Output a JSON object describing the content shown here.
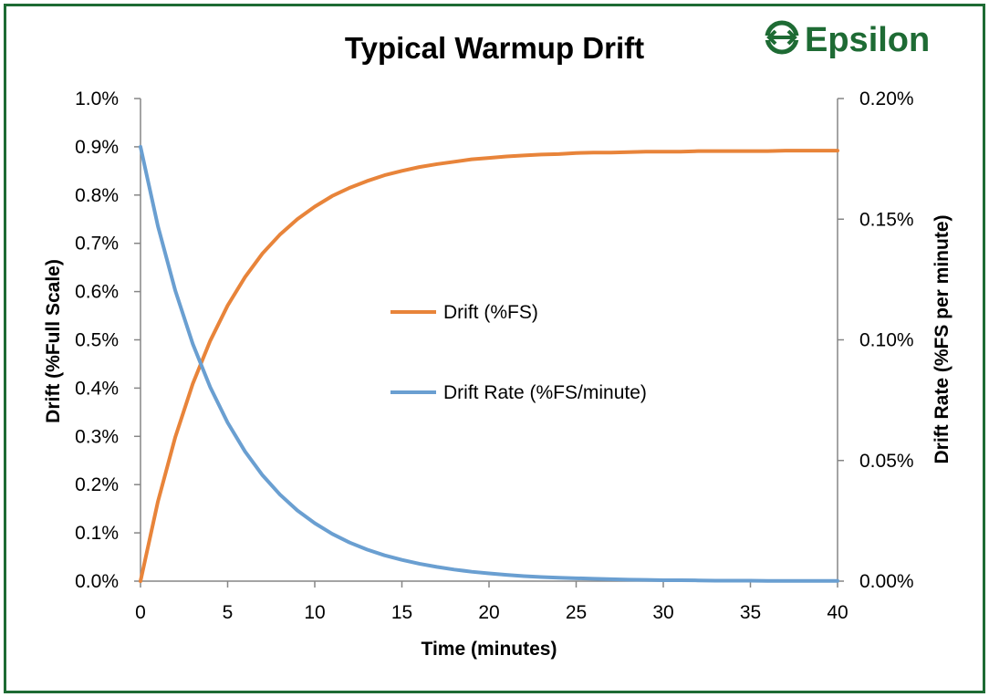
{
  "logo": {
    "text": "Epsilon",
    "color": "#1e6b34"
  },
  "chart_data": {
    "type": "line",
    "title": "Typical Warmup Drift",
    "xlabel": "Time (minutes)",
    "ylabel": "Drift (%Full Scale)",
    "y2label": "Drift Rate (%FS per minute)",
    "xlim": [
      0,
      40
    ],
    "ylim": [
      0,
      1.0
    ],
    "y2lim": [
      0,
      0.2
    ],
    "x_ticks": [
      "0",
      "5",
      "10",
      "15",
      "20",
      "25",
      "30",
      "35",
      "40"
    ],
    "y_ticks": [
      "0.0%",
      "0.1%",
      "0.2%",
      "0.3%",
      "0.4%",
      "0.5%",
      "0.6%",
      "0.7%",
      "0.8%",
      "0.9%",
      "1.0%"
    ],
    "y2_ticks": [
      "0.00%",
      "0.05%",
      "0.10%",
      "0.15%",
      "0.20%"
    ],
    "grid": false,
    "legend_position": "center",
    "x": [
      0,
      1,
      2,
      3,
      4,
      5,
      6,
      7,
      8,
      9,
      10,
      11,
      12,
      13,
      14,
      15,
      16,
      17,
      18,
      19,
      20,
      21,
      22,
      23,
      24,
      25,
      26,
      27,
      28,
      29,
      30,
      31,
      32,
      33,
      34,
      35,
      36,
      37,
      38,
      39,
      40
    ],
    "series": [
      {
        "name": "Drift (%FS)",
        "axis": "left",
        "color": "#e8843a",
        "values": [
          0.0,
          0.165,
          0.299,
          0.409,
          0.498,
          0.571,
          0.63,
          0.679,
          0.718,
          0.75,
          0.776,
          0.798,
          0.815,
          0.829,
          0.841,
          0.85,
          0.858,
          0.864,
          0.869,
          0.874,
          0.877,
          0.88,
          0.882,
          0.884,
          0.885,
          0.887,
          0.888,
          0.888,
          0.889,
          0.89,
          0.89,
          0.89,
          0.891,
          0.891,
          0.891,
          0.891,
          0.891,
          0.892,
          0.892,
          0.892,
          0.892
        ]
      },
      {
        "name": "Drift Rate (%FS/minute)",
        "axis": "right",
        "color": "#6a9fd1",
        "values": [
          0.18,
          0.1471,
          0.1203,
          0.0983,
          0.0804,
          0.0657,
          0.0537,
          0.0439,
          0.0359,
          0.0293,
          0.024,
          0.0196,
          0.016,
          0.0131,
          0.0107,
          0.0088,
          0.0072,
          0.0059,
          0.0048,
          0.0039,
          0.0032,
          0.0026,
          0.0021,
          0.0017,
          0.0014,
          0.0012,
          0.001,
          0.0008,
          0.0006,
          0.0005,
          0.0004,
          0.0004,
          0.0003,
          0.0002,
          0.0002,
          0.0002,
          0.0001,
          0.0001,
          0.0001,
          0.0001,
          0.0001
        ]
      }
    ]
  }
}
